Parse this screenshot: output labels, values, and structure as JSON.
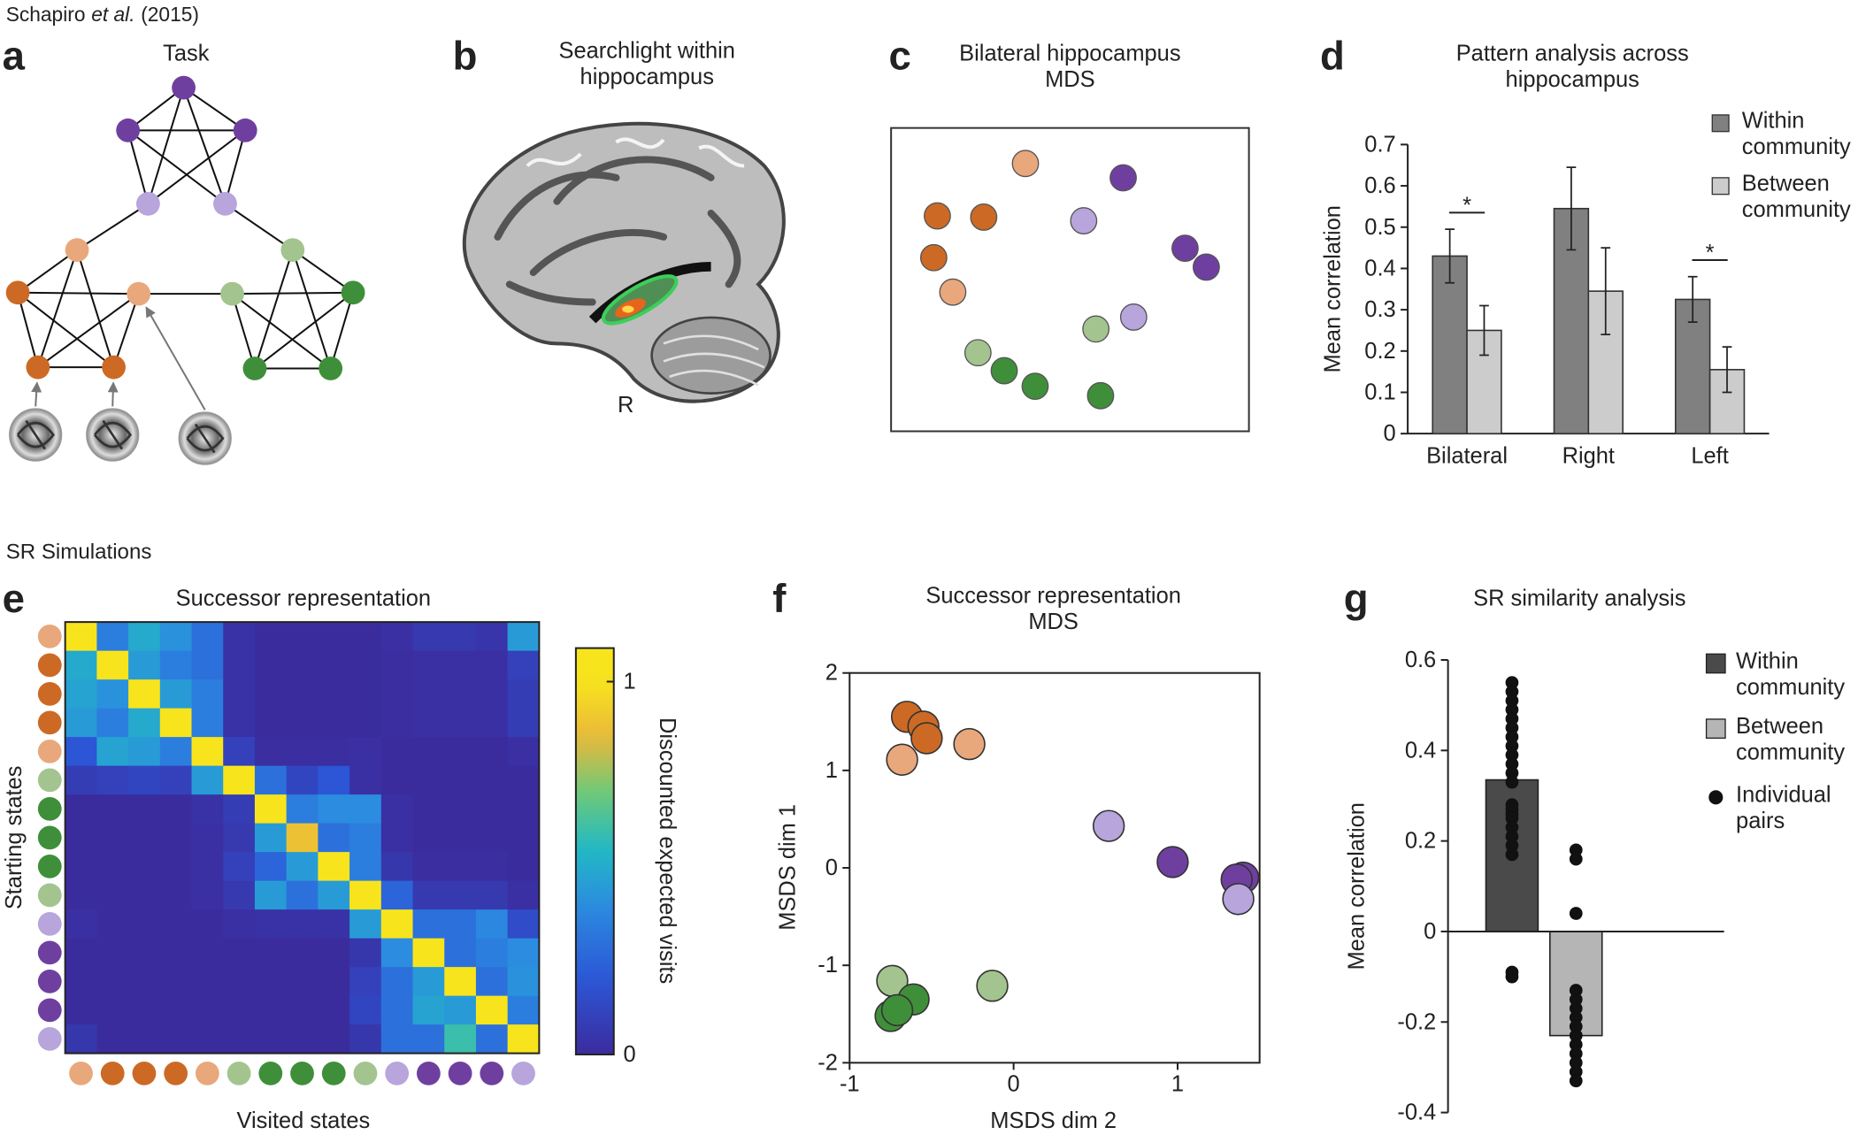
{
  "header": {
    "citation_author": "Schapiro",
    "citation_etal": "et al.",
    "citation_year": "(2015)",
    "section_sr": "SR Simulations"
  },
  "panels": {
    "a": {
      "letter": "a",
      "title": "Task"
    },
    "b": {
      "letter": "b",
      "title": "Searchlight within hippocampus",
      "side_label": "R"
    },
    "c": {
      "letter": "c"
    },
    "d": {
      "letter": "d"
    },
    "e": {
      "letter": "e"
    },
    "f": {
      "letter": "f"
    },
    "g": {
      "letter": "g"
    }
  },
  "chart_data": [
    {
      "type": "mds",
      "title": "Bilateral hippocampus MDS",
      "x": [
        37.4,
        64.6,
        12.9,
        25.8,
        53.6,
        81.8,
        87.7,
        11.9,
        17.2,
        67.5,
        57.0,
        24.2,
        31.5,
        40.1,
        58.3
      ],
      "y": [
        88.7,
        84.0,
        71.5,
        71.1,
        69.9,
        60.9,
        54.7,
        57.8,
        46.5,
        38.3,
        34.4,
        26.6,
        20.7,
        15.6,
        12.5
      ],
      "colors": [
        "#e8a87c",
        "#6f3fa0",
        "#cc6a25",
        "#cc6a25",
        "#b7a5dc",
        "#6f3fa0",
        "#6f3fa0",
        "#cc6a25",
        "#e8a87c",
        "#b7a5dc",
        "#a3c48f",
        "#a3c48f",
        "#3f8f3a",
        "#3f8f3a",
        "#3f8f3a"
      ]
    },
    {
      "type": "grouped_bar",
      "title": "Pattern analysis across hippocampus",
      "y_label": "Mean correlation",
      "categories": [
        "Bilateral",
        "Right",
        "Left"
      ],
      "series": [
        {
          "name": "Within community",
          "color": "#808080",
          "values": [
            0.43,
            0.545,
            0.325
          ],
          "errors": [
            0.065,
            0.1,
            0.055
          ]
        },
        {
          "name": "Between community",
          "color": "#cccccc",
          "values": [
            0.25,
            0.345,
            0.155
          ],
          "errors": [
            0.06,
            0.105,
            0.055
          ]
        }
      ],
      "ylim": [
        0,
        0.7
      ],
      "yticks": [
        0,
        0.1,
        0.2,
        0.3,
        0.4,
        0.5,
        0.6,
        0.7
      ],
      "annotations": [
        {
          "text": "*",
          "x": "Bilateral"
        },
        {
          "text": "*",
          "x": "Left"
        }
      ]
    },
    {
      "type": "heatmap",
      "title": "Successor representation",
      "x_label": "Visited states",
      "y_label": "Starting states",
      "state_colors": [
        "#e8a87c",
        "#cc6a25",
        "#cc6a25",
        "#cc6a25",
        "#e8a87c",
        "#a3c48f",
        "#3f8f3a",
        "#3f8f3a",
        "#3f8f3a",
        "#a3c48f",
        "#b7a5dc",
        "#6f3fa0",
        "#6f3fa0",
        "#6f3fa0",
        "#b7a5dc"
      ],
      "values": [
        [
          1,
          0.35,
          0.5,
          0.42,
          0.3,
          0.03,
          0,
          0,
          0,
          0,
          0.02,
          0.06,
          0.06,
          0.04,
          0.45
        ],
        [
          0.5,
          1,
          0.45,
          0.35,
          0.3,
          0.03,
          0,
          0,
          0,
          0,
          0.01,
          0.02,
          0.02,
          0.02,
          0.1
        ],
        [
          0.48,
          0.42,
          1,
          0.45,
          0.35,
          0.03,
          0,
          0,
          0,
          0,
          0.01,
          0.02,
          0.02,
          0.02,
          0.08
        ],
        [
          0.45,
          0.35,
          0.5,
          1,
          0.35,
          0.03,
          0,
          0,
          0,
          0,
          0.01,
          0.02,
          0.02,
          0.02,
          0.08
        ],
        [
          0.2,
          0.48,
          0.45,
          0.35,
          1,
          0.1,
          0.01,
          0.01,
          0.01,
          0.02,
          0,
          0,
          0,
          0,
          0.02
        ],
        [
          0.08,
          0.1,
          0.12,
          0.1,
          0.45,
          1,
          0.3,
          0.12,
          0.2,
          0.02,
          0,
          0,
          0,
          0,
          0
        ],
        [
          0,
          0,
          0,
          0,
          0.03,
          0.08,
          1,
          0.35,
          0.4,
          0.4,
          0.02,
          0,
          0,
          0,
          0
        ],
        [
          0,
          0,
          0,
          0,
          0.02,
          0.06,
          0.45,
          0.88,
          0.3,
          0.35,
          0.02,
          0,
          0,
          0,
          0
        ],
        [
          0,
          0,
          0,
          0,
          0.02,
          0.1,
          0.25,
          0.45,
          1,
          0.35,
          0.05,
          0.01,
          0.01,
          0.01,
          0
        ],
        [
          0,
          0,
          0,
          0,
          0.02,
          0.06,
          0.45,
          0.3,
          0.45,
          1,
          0.25,
          0.06,
          0.06,
          0.06,
          0.02
        ],
        [
          0.02,
          0,
          0,
          0,
          0,
          0.02,
          0.03,
          0.03,
          0.03,
          0.45,
          1,
          0.3,
          0.3,
          0.38,
          0.15
        ],
        [
          0,
          0,
          0,
          0,
          0,
          0,
          0,
          0,
          0,
          0.05,
          0.4,
          1,
          0.3,
          0.35,
          0.4
        ],
        [
          0,
          0,
          0,
          0,
          0,
          0,
          0,
          0,
          0,
          0.1,
          0.3,
          0.45,
          1,
          0.3,
          0.42
        ],
        [
          0,
          0,
          0,
          0,
          0,
          0,
          0,
          0,
          0,
          0.12,
          0.3,
          0.48,
          0.45,
          1,
          0.35
        ],
        [
          0.05,
          0,
          0,
          0,
          0,
          0,
          0,
          0,
          0,
          0.05,
          0.3,
          0.3,
          0.6,
          0.3,
          1
        ]
      ],
      "colorbar_label": "Discounted expected visits",
      "clim": [
        0,
        1.09
      ],
      "cticks": [
        0,
        1
      ]
    },
    {
      "type": "scatter",
      "title": "Successor representation MDS",
      "x_label": "MSDS dim 2",
      "y_label": "MSDS dim 1",
      "x": [
        -0.65,
        -0.55,
        -0.53,
        -0.68,
        -0.27,
        0.58,
        0.97,
        1.4,
        1.36,
        1.37,
        -0.74,
        -0.13,
        -0.61,
        -0.75,
        -0.71
      ],
      "y": [
        1.55,
        1.45,
        1.33,
        1.11,
        1.27,
        0.43,
        0.06,
        -0.1,
        -0.12,
        -0.32,
        -1.16,
        -1.21,
        -1.35,
        -1.52,
        -1.46
      ],
      "colors": [
        "#cc6a25",
        "#cc6a25",
        "#cc6a25",
        "#e8a87c",
        "#e8a87c",
        "#b7a5dc",
        "#6f3fa0",
        "#6f3fa0",
        "#6f3fa0",
        "#b7a5dc",
        "#a3c48f",
        "#a3c48f",
        "#3f8f3a",
        "#3f8f3a",
        "#3f8f3a"
      ],
      "xlim": [
        -1,
        1.5
      ],
      "ylim": [
        -2,
        2
      ],
      "xticks": [
        -1,
        0,
        1
      ],
      "yticks": [
        -2,
        -1,
        0,
        1,
        2
      ]
    },
    {
      "type": "bar_points",
      "title": "SR similarity analysis",
      "y_label": "Mean correlation",
      "series": [
        {
          "name": "Within community",
          "color": "#4a4a4a",
          "values": [
            0.335
          ],
          "points": [
            0.55,
            0.53,
            0.51,
            0.49,
            0.47,
            0.45,
            0.43,
            0.41,
            0.39,
            0.37,
            0.35,
            0.33,
            0.28,
            0.27,
            0.26,
            0.25,
            0.23,
            0.21,
            0.19,
            0.17,
            -0.09,
            -0.1
          ]
        },
        {
          "name": "Between community",
          "color": "#b5b5b5",
          "values": [
            -0.23
          ],
          "points": [
            0.18,
            0.16,
            0.04,
            -0.13,
            -0.15,
            -0.17,
            -0.19,
            -0.21,
            -0.23,
            -0.25,
            -0.27,
            -0.29,
            -0.31,
            -0.33
          ]
        }
      ],
      "points_name": "Individual pairs",
      "points_color": "#111111",
      "ylim": [
        -0.4,
        0.6
      ],
      "yticks": [
        -0.4,
        -0.2,
        0,
        0.2,
        0.4,
        0.6
      ]
    }
  ]
}
